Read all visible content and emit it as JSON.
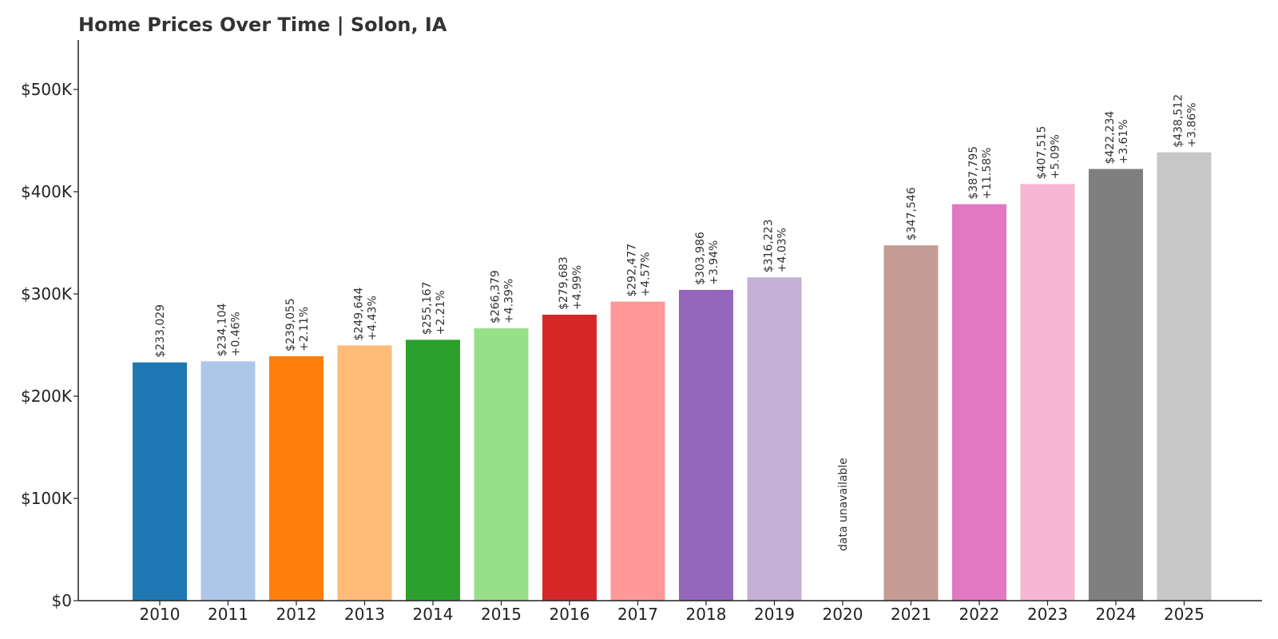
{
  "chart_data": {
    "type": "bar",
    "title": "Home Prices Over Time | Solon, IA",
    "xlabel": "",
    "ylabel": "",
    "ylim": [
      0,
      550000
    ],
    "yticks": [
      {
        "value": 0,
        "label": "$0"
      },
      {
        "value": 100000,
        "label": "$100K"
      },
      {
        "value": 200000,
        "label": "$200K"
      },
      {
        "value": 300000,
        "label": "$300K"
      },
      {
        "value": 400000,
        "label": "$400K"
      },
      {
        "value": 500000,
        "label": "$500K"
      }
    ],
    "grid": false,
    "categories": [
      "2010",
      "2011",
      "2012",
      "2013",
      "2014",
      "2015",
      "2016",
      "2017",
      "2018",
      "2019",
      "2020",
      "2021",
      "2022",
      "2023",
      "2024",
      "2025"
    ],
    "values": [
      233029,
      234104,
      239055,
      249644,
      255167,
      266379,
      279683,
      292477,
      303986,
      316223,
      null,
      347546,
      387795,
      407515,
      422234,
      438512
    ],
    "value_labels": [
      "$233,029",
      "$234,104",
      "$239,055",
      "$249,644",
      "$255,167",
      "$266,379",
      "$279,683",
      "$292,477",
      "$303,986",
      "$316,223",
      "",
      "$347,546",
      "$387,795",
      "$407,515",
      "$422,234",
      "$438,512"
    ],
    "change_labels": [
      "",
      "+0.46%",
      "+2.11%",
      "+4.43%",
      "+2.21%",
      "+4.39%",
      "+4.99%",
      "+4.57%",
      "+3.94%",
      "+4.03%",
      "",
      "",
      "+11.58%",
      "+5.09%",
      "+3.61%",
      "+3.86%"
    ],
    "missing_label": "data unavailable",
    "colors": [
      "#1f77b4",
      "#aec7e8",
      "#ff7f0e",
      "#ffbb78",
      "#2ca02c",
      "#98df8a",
      "#d62728",
      "#ff9896",
      "#9467bd",
      "#c5b0d5",
      "#8c564b",
      "#c49c94",
      "#e377c2",
      "#f7b6d2",
      "#7f7f7f",
      "#c7c7c7"
    ]
  }
}
